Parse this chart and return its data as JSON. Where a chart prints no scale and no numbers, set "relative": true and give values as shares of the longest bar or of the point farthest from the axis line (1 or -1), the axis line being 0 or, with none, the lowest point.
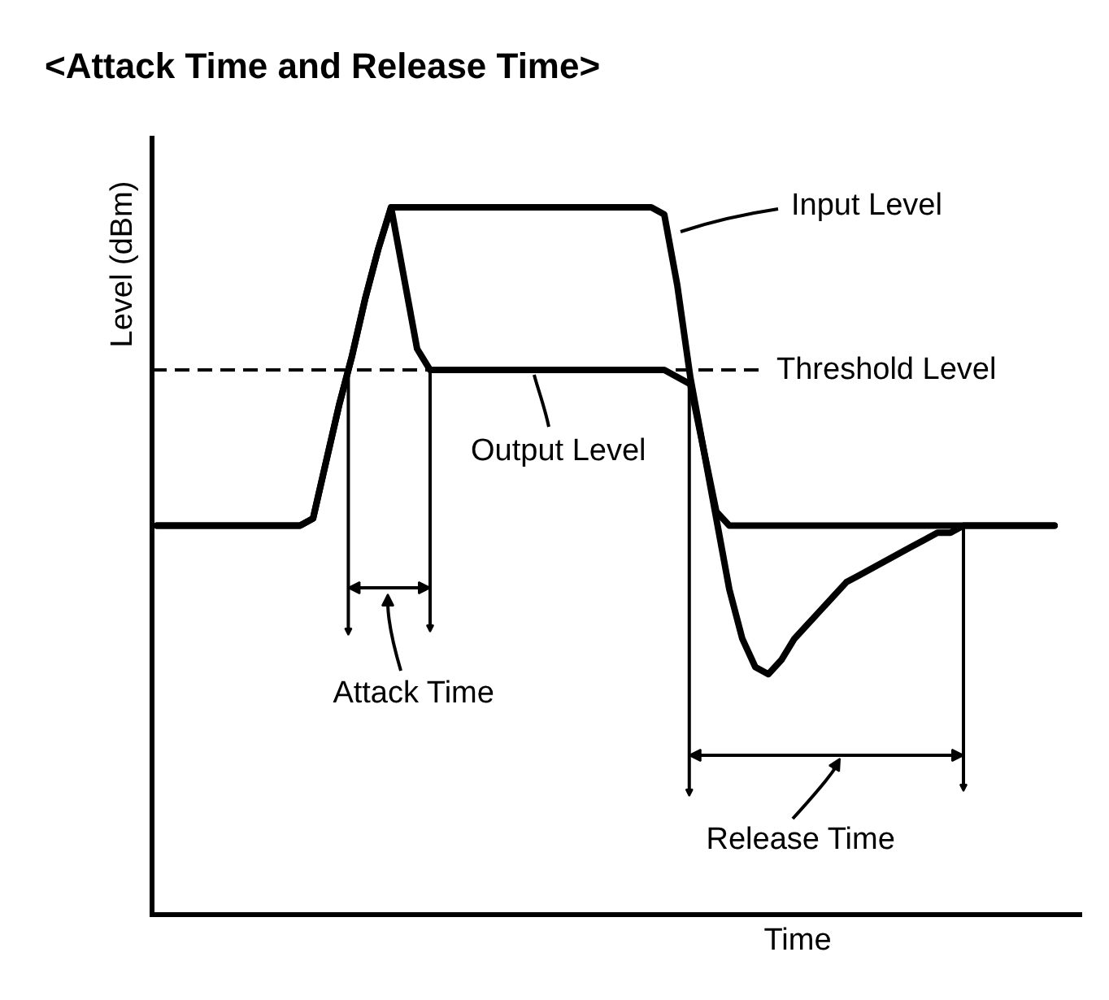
{
  "chart_data": {
    "type": "line",
    "title": "<Attack Time and Release Time>",
    "xlabel": "Time",
    "ylabel": "Level (dBm)",
    "relative": true,
    "categories": [
      null,
      null,
      null,
      null,
      null,
      null,
      null,
      null,
      null,
      null,
      null,
      null,
      null,
      null,
      null,
      null,
      null,
      null,
      null,
      null,
      null,
      null,
      null,
      null,
      null,
      null,
      null,
      null,
      null,
      null,
      null,
      null,
      null,
      null,
      null,
      null,
      null,
      null,
      null,
      null,
      null,
      null,
      null,
      null,
      null,
      null,
      null,
      null,
      null,
      null,
      null,
      null,
      null,
      null,
      null,
      null,
      null,
      null,
      null,
      null,
      null,
      null,
      null,
      null,
      null,
      null,
      null,
      null,
      null,
      null
    ],
    "series": [
      {
        "name": "Input Level",
        "color": "#000000",
        "values": [
          0.55,
          0.55,
          0.55,
          0.55,
          0.55,
          0.55,
          0.55,
          0.55,
          0.55,
          0.55,
          0.55,
          0.55,
          0.56,
          0.64,
          0.72,
          0.79,
          0.87,
          0.94,
          1.0,
          1.0,
          1.0,
          1.0,
          1.0,
          1.0,
          1.0,
          1.0,
          1.0,
          1.0,
          1.0,
          1.0,
          1.0,
          1.0,
          1.0,
          1.0,
          1.0,
          1.0,
          1.0,
          1.0,
          1.0,
          0.99,
          0.89,
          0.76,
          0.66,
          0.57,
          0.55,
          0.55,
          0.55,
          0.55,
          0.55,
          0.55,
          0.55,
          0.55,
          0.55,
          0.55,
          0.55,
          0.55,
          0.55,
          0.55,
          0.55,
          0.55,
          0.55,
          0.55,
          0.55,
          0.55,
          0.55,
          0.55,
          0.55,
          0.55,
          0.55,
          0.55
        ]
      },
      {
        "name": "Output Level",
        "color": "#000000",
        "values": [
          0.55,
          0.55,
          0.55,
          0.55,
          0.55,
          0.55,
          0.55,
          0.55,
          0.55,
          0.55,
          0.55,
          0.55,
          0.56,
          0.64,
          0.72,
          0.79,
          0.87,
          0.94,
          1.0,
          0.9,
          0.8,
          0.77,
          0.77,
          0.77,
          0.77,
          0.77,
          0.77,
          0.77,
          0.77,
          0.77,
          0.77,
          0.77,
          0.77,
          0.77,
          0.77,
          0.77,
          0.77,
          0.77,
          0.77,
          0.77,
          0.76,
          0.75,
          0.66,
          0.56,
          0.46,
          0.39,
          0.35,
          0.34,
          0.36,
          0.39,
          0.41,
          0.43,
          0.45,
          0.47,
          0.48,
          0.49,
          0.5,
          0.51,
          0.52,
          0.53,
          0.54,
          0.54,
          0.55,
          0.55,
          0.55,
          0.55,
          0.55,
          0.55,
          0.55,
          0.55
        ]
      }
    ],
    "ref_lines": [
      {
        "axis": "y",
        "value": 0.77,
        "label": "Threshold Level",
        "line_style": "dashed",
        "color": "#000000"
      }
    ],
    "annotations": [
      "Attack Time",
      "Release Time"
    ]
  }
}
